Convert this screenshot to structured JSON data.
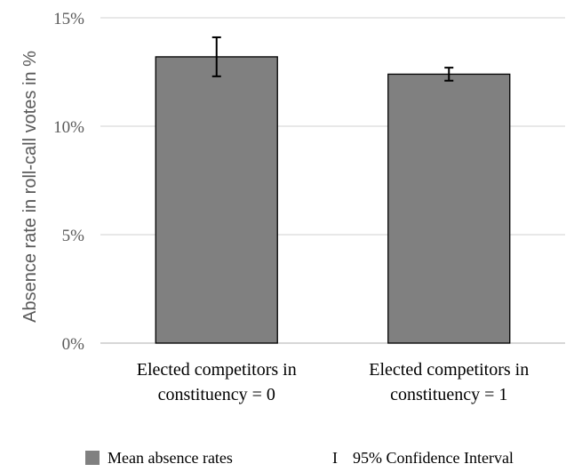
{
  "chart_data": {
    "type": "bar",
    "categories": [
      [
        "Elected competitors in",
        "constituency = 0"
      ],
      [
        "Elected competitors in",
        "constituency = 1"
      ]
    ],
    "values": [
      13.2,
      12.4
    ],
    "error_low": [
      12.3,
      12.1
    ],
    "error_high": [
      14.1,
      12.7
    ],
    "ylabel": "Absence rate in roll-call votes in %",
    "ylim": [
      0,
      15
    ],
    "yticks": [
      0,
      5,
      10,
      15
    ],
    "ytick_labels": [
      "0%",
      "5%",
      "10%",
      "15%"
    ],
    "grid": true,
    "legend_position": "bottom",
    "legend": {
      "bar_label": "Mean absence rates",
      "ci_marker": "I",
      "ci_label": "95% Confidence Interval"
    },
    "colors": {
      "bar": "#808080",
      "bar_border": "#000000",
      "grid": "#d9d9d9",
      "error": "#000000"
    }
  }
}
